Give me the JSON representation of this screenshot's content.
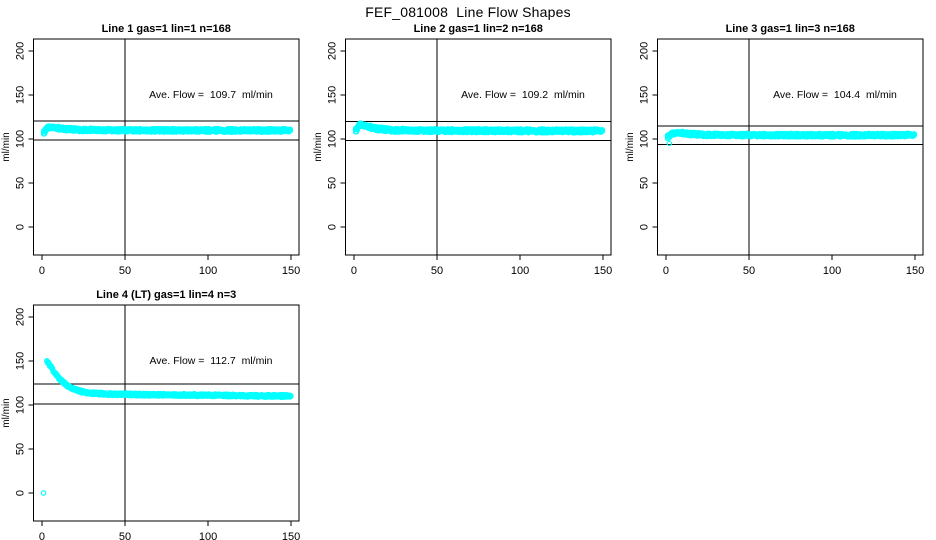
{
  "figure": {
    "background": "#FFFFFF",
    "axis_color": "#000000",
    "marker_color": "#00FFFF"
  },
  "chart_data": {
    "type": "scatter",
    "title": "FEF_081008  Line Flow Shapes",
    "ylabel": "ml/min",
    "xlabel": "",
    "x_ticks": [
      0,
      50,
      100,
      150
    ],
    "y_ticks": [
      0,
      50,
      100,
      150,
      200
    ],
    "xlim": [
      -5.1,
      154.8
    ],
    "ylim": [
      -31.8,
      213.6
    ],
    "grid": false,
    "reference_vline_x": 50,
    "marker": {
      "shape": "open-circle",
      "color": "#00FFFF"
    },
    "panels": [
      {
        "title": "Line 1 gas=1 lin=1 n=168",
        "avg_flow": 109.7,
        "avg_flow_label": "Ave. Flow =  109.7  ml/min",
        "hlines": [
          120.7,
          98.7
        ],
        "x_start": 1.0,
        "x_end": 150,
        "spread": 2.0,
        "profile": [
          [
            1.5,
            107.5
          ],
          [
            2,
            109.5
          ],
          [
            3,
            111.8
          ],
          [
            4,
            113.2
          ],
          [
            5,
            113.9
          ],
          [
            6,
            113.8
          ],
          [
            7,
            113.4
          ],
          [
            8,
            112.9
          ],
          [
            10,
            112.2
          ],
          [
            12,
            111.7
          ],
          [
            15,
            111.2
          ],
          [
            20,
            110.7
          ],
          [
            25,
            110.4
          ],
          [
            30,
            110.2
          ],
          [
            40,
            110.0
          ],
          [
            50,
            109.9
          ],
          [
            75,
            109.8
          ],
          [
            100,
            109.8
          ],
          [
            125,
            109.7
          ],
          [
            150,
            109.7
          ]
        ],
        "outliers": []
      },
      {
        "title": "Line 2 gas=1 lin=2 n=168",
        "avg_flow": 109.2,
        "avg_flow_label": "Ave. Flow =  109.2  ml/min",
        "hlines": [
          120.1,
          98.3
        ],
        "x_start": 1.0,
        "x_end": 150,
        "spread": 2.2,
        "profile": [
          [
            1.5,
            110.0
          ],
          [
            2,
            112.0
          ],
          [
            3,
            115.0
          ],
          [
            4,
            116.4
          ],
          [
            5,
            116.6
          ],
          [
            6,
            116.0
          ],
          [
            7,
            115.2
          ],
          [
            8,
            114.4
          ],
          [
            10,
            113.2
          ],
          [
            12,
            112.3
          ],
          [
            15,
            111.4
          ],
          [
            20,
            110.5
          ],
          [
            25,
            110.0
          ],
          [
            30,
            109.8
          ],
          [
            40,
            109.6
          ],
          [
            50,
            109.5
          ],
          [
            75,
            109.4
          ],
          [
            100,
            109.3
          ],
          [
            125,
            109.2
          ],
          [
            150,
            109.2
          ]
        ],
        "outliers": []
      },
      {
        "title": "Line 3 gas=1 lin=3 n=168",
        "avg_flow": 104.4,
        "avg_flow_label": "Ave. Flow =  104.4  ml/min",
        "hlines": [
          114.8,
          94.0
        ],
        "x_start": 1.0,
        "x_end": 150,
        "spread": 2.0,
        "profile": [
          [
            1.5,
            102.5
          ],
          [
            3,
            104.8
          ],
          [
            4,
            106.2
          ],
          [
            5,
            107.1
          ],
          [
            6,
            107.4
          ],
          [
            7,
            107.3
          ],
          [
            8,
            107.0
          ],
          [
            10,
            106.6
          ],
          [
            12,
            106.1
          ],
          [
            15,
            105.6
          ],
          [
            20,
            105.1
          ],
          [
            25,
            104.8
          ],
          [
            30,
            104.6
          ],
          [
            40,
            104.5
          ],
          [
            50,
            104.4
          ],
          [
            75,
            104.3
          ],
          [
            100,
            104.3
          ],
          [
            125,
            104.3
          ],
          [
            150,
            104.5
          ]
        ],
        "outliers": [
          [
            2,
            95
          ]
        ]
      },
      {
        "title": "Line 4 (LT) gas=1 lin=4 n=3",
        "avg_flow": 112.7,
        "avg_flow_label": "Ave. Flow =  112.7  ml/min",
        "hlines": [
          124.0,
          101.4
        ],
        "x_start": 3.0,
        "x_end": 150,
        "spread": 1.5,
        "profile": [
          [
            3,
            150
          ],
          [
            4,
            147.5
          ],
          [
            5,
            144.5
          ],
          [
            6,
            141.5
          ],
          [
            7,
            138.5
          ],
          [
            8,
            135.8
          ],
          [
            9,
            133.2
          ],
          [
            10,
            131.0
          ],
          [
            11,
            129.0
          ],
          [
            12,
            127.2
          ],
          [
            13,
            125.5
          ],
          [
            14,
            124.0
          ],
          [
            15,
            122.6
          ],
          [
            16,
            121.4
          ],
          [
            17,
            120.3
          ],
          [
            18,
            119.3
          ],
          [
            19,
            118.4
          ],
          [
            20,
            117.6
          ],
          [
            22,
            116.3
          ],
          [
            24,
            115.3
          ],
          [
            26,
            114.5
          ],
          [
            28,
            113.9
          ],
          [
            30,
            113.5
          ],
          [
            35,
            112.9
          ],
          [
            40,
            112.5
          ],
          [
            45,
            112.3
          ],
          [
            50,
            112.1
          ],
          [
            60,
            111.8
          ],
          [
            70,
            111.6
          ],
          [
            80,
            111.4
          ],
          [
            90,
            111.2
          ],
          [
            100,
            111.1
          ],
          [
            110,
            110.9
          ],
          [
            120,
            110.7
          ],
          [
            130,
            110.5
          ],
          [
            140,
            110.3
          ],
          [
            150,
            110.1
          ]
        ],
        "outliers": [
          [
            1,
            0
          ]
        ]
      }
    ]
  }
}
